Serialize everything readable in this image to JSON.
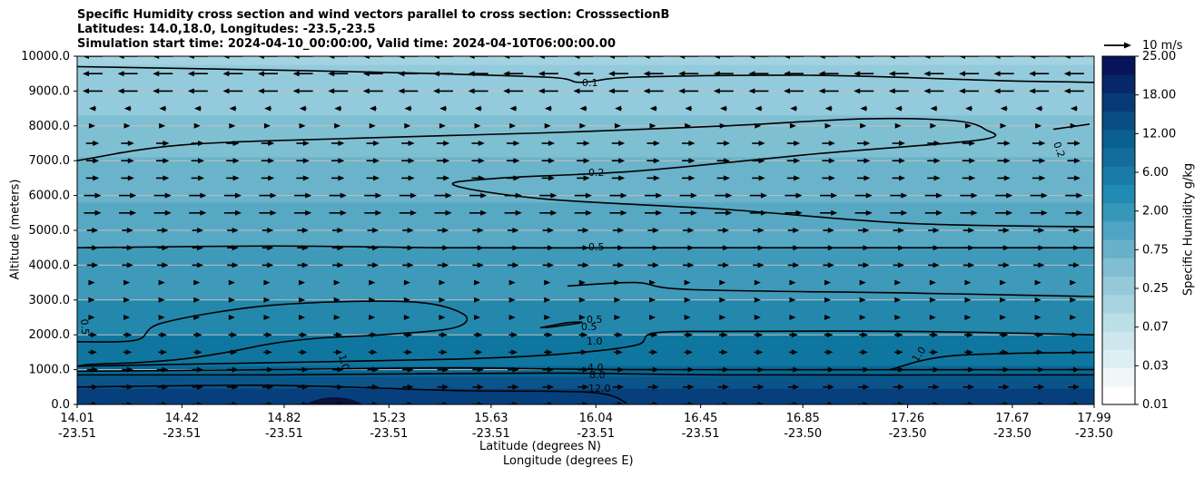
{
  "chart_data": {
    "type": "contour",
    "title_lines": [
      "Specific Humidity cross section and wind vectors parallel to cross section: CrosssectionB",
      "Latitudes: 14.0,18.0, Longitudes: -23.5,-23.5",
      "Simulation start time: 2024-04-10_00:00:00, Valid time: 2024-04-10T06:00:00.00"
    ],
    "xlabel_lat": "Latitude (degrees N)",
    "xlabel_lon": "Longitude (degrees E)",
    "ylabel": "Altitude (meters)",
    "colorbar_label": "Specific Humidity g/kg",
    "quiver_key": "10 m/s",
    "ylim": [
      0,
      10000
    ],
    "yticks": [
      "0.0",
      "1000.0",
      "2000.0",
      "3000.0",
      "4000.0",
      "5000.0",
      "6000.0",
      "7000.0",
      "8000.0",
      "9000.0",
      "10000.0"
    ],
    "xlim": [
      14.01,
      17.99
    ],
    "x_lat_ticks": [
      "14.01",
      "14.42",
      "14.82",
      "15.23",
      "15.63",
      "16.04",
      "16.45",
      "16.85",
      "17.26",
      "17.67",
      "17.99"
    ],
    "x_lon_ticks": [
      "-23.51",
      "-23.51",
      "-23.51",
      "-23.51",
      "-23.51",
      "-23.51",
      "-23.51",
      "-23.50",
      "-23.50",
      "-23.50",
      "-23.50"
    ],
    "colorbar_ticks": [
      "0.01",
      "0.03",
      "0.07",
      "0.25",
      "0.75",
      "2.00",
      "6.00",
      "12.00",
      "18.00",
      "25.00"
    ],
    "colorbar_levels": 19,
    "contour_labels": [
      "0.1",
      "0.2",
      "0.2",
      "0.5",
      "0.5",
      "0.5",
      "0.5",
      "1.0",
      "1.0",
      "1.0",
      "4.0",
      "8.0",
      "12.0"
    ]
  }
}
